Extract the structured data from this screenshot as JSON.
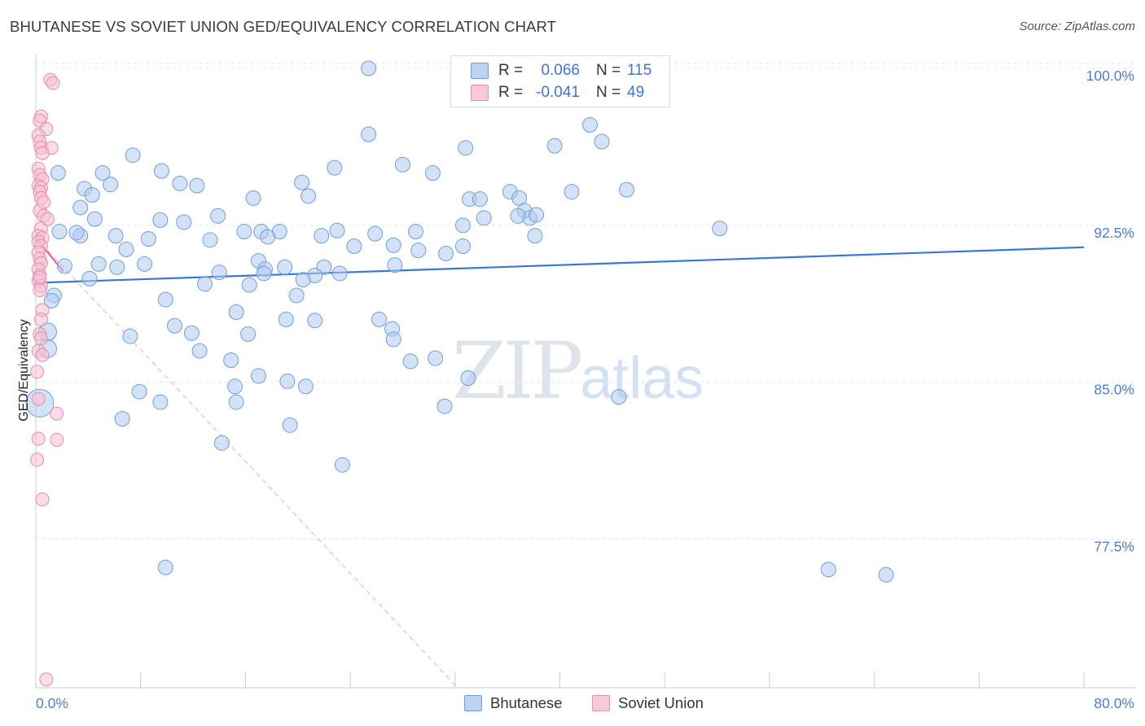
{
  "title": "BHUTANESE VS SOVIET UNION GED/EQUIVALENCY CORRELATION CHART",
  "source": "Source: ZipAtlas.com",
  "watermark": {
    "zip": "ZIP",
    "atlas": "atlas"
  },
  "legend": {
    "rows": [
      {
        "r_label": "R =",
        "r_value": "0.066",
        "n_label": "N =",
        "n_value": "115"
      },
      {
        "r_label": "R =",
        "r_value": "-0.041",
        "n_label": "N =",
        "n_value": "49"
      }
    ]
  },
  "bottom_legend": [
    "Bhutanese",
    "Soviet Union"
  ],
  "colors": {
    "blue_fill": "#aecbf0",
    "blue_stroke": "#6f9fd9",
    "blue_line": "#3a78d0",
    "pink_fill": "#f6bfd1",
    "pink_stroke": "#e58eab",
    "pink_line": "#e46f95",
    "grid": "#e6e6e6",
    "tick_text": "#4a7fd1"
  },
  "chart_data": {
    "type": "scatter",
    "title": "BHUTANESE VS SOVIET UNION GED/EQUIVALENCY CORRELATION CHART",
    "xlabel": "",
    "ylabel": "GED/Equivalency",
    "xlim": [
      0,
      80
    ],
    "ylim": [
      70.4,
      100.7
    ],
    "x_tick_labels": [
      "0.0%",
      "80.0%"
    ],
    "y_ticks": [
      77.5,
      85.0,
      92.5,
      100.0
    ],
    "y_tick_labels": [
      "77.5%",
      "85.0%",
      "92.5%",
      "100.0%"
    ],
    "series": [
      {
        "name": "Bhutanese",
        "r": 0.066,
        "n": 115,
        "trend": {
          "x": [
            0,
            80
          ],
          "y": [
            89.75,
            91.45
          ]
        },
        "points": [
          [
            25.4,
            100.0
          ],
          [
            25.4,
            96.85
          ],
          [
            42.3,
            97.3
          ],
          [
            39.6,
            96.3
          ],
          [
            43.2,
            96.5
          ],
          [
            32.8,
            96.2
          ],
          [
            7.4,
            95.85
          ],
          [
            5.1,
            95.0
          ],
          [
            9.6,
            95.1
          ],
          [
            11.0,
            94.5
          ],
          [
            12.3,
            94.4
          ],
          [
            5.7,
            94.45
          ],
          [
            3.7,
            94.25
          ],
          [
            4.3,
            93.95
          ],
          [
            22.8,
            95.25
          ],
          [
            30.3,
            95.0
          ],
          [
            36.2,
            94.1
          ],
          [
            40.9,
            94.1
          ],
          [
            33.1,
            93.75
          ],
          [
            33.9,
            93.75
          ],
          [
            36.9,
            93.8
          ],
          [
            16.6,
            93.8
          ],
          [
            20.3,
            94.55
          ],
          [
            20.8,
            93.9
          ],
          [
            3.4,
            93.35
          ],
          [
            4.5,
            92.8
          ],
          [
            9.5,
            92.75
          ],
          [
            13.9,
            92.95
          ],
          [
            11.3,
            92.65
          ],
          [
            15.9,
            92.2
          ],
          [
            17.2,
            92.2
          ],
          [
            18.6,
            92.2
          ],
          [
            23.0,
            92.25
          ],
          [
            29.0,
            92.2
          ],
          [
            32.6,
            92.5
          ],
          [
            34.2,
            92.85
          ],
          [
            37.3,
            93.2
          ],
          [
            37.7,
            92.85
          ],
          [
            52.2,
            92.35
          ],
          [
            3.4,
            92.0
          ],
          [
            1.8,
            92.2
          ],
          [
            3.1,
            92.15
          ],
          [
            6.1,
            92.0
          ],
          [
            8.6,
            91.85
          ],
          [
            13.3,
            91.8
          ],
          [
            17.7,
            91.95
          ],
          [
            21.8,
            92.0
          ],
          [
            24.3,
            91.5
          ],
          [
            27.3,
            91.55
          ],
          [
            29.2,
            91.3
          ],
          [
            31.3,
            91.15
          ],
          [
            32.6,
            91.5
          ],
          [
            38.1,
            92.0
          ],
          [
            25.9,
            92.1
          ],
          [
            6.9,
            91.35
          ],
          [
            2.2,
            90.55
          ],
          [
            4.8,
            90.65
          ],
          [
            6.2,
            90.5
          ],
          [
            8.3,
            90.65
          ],
          [
            17.0,
            90.8
          ],
          [
            17.5,
            90.4
          ],
          [
            19.0,
            90.5
          ],
          [
            22.0,
            90.5
          ],
          [
            27.4,
            90.6
          ],
          [
            14.0,
            90.25
          ],
          [
            17.4,
            90.2
          ],
          [
            21.3,
            90.1
          ],
          [
            23.2,
            90.2
          ],
          [
            1.4,
            89.15
          ],
          [
            1.2,
            88.9
          ],
          [
            4.1,
            89.95
          ],
          [
            12.9,
            89.7
          ],
          [
            16.3,
            89.65
          ],
          [
            20.4,
            89.9
          ],
          [
            19.9,
            89.15
          ],
          [
            9.9,
            88.95
          ],
          [
            15.3,
            88.35
          ],
          [
            10.6,
            87.7
          ],
          [
            11.9,
            87.35
          ],
          [
            7.2,
            87.2
          ],
          [
            16.2,
            87.3
          ],
          [
            19.1,
            88.0
          ],
          [
            21.3,
            87.95
          ],
          [
            26.2,
            88.0
          ],
          [
            27.2,
            87.55
          ],
          [
            27.3,
            87.05
          ],
          [
            0.9,
            87.4
          ],
          [
            0.9,
            86.6
          ],
          [
            12.5,
            86.5
          ],
          [
            14.9,
            86.05
          ],
          [
            28.6,
            86.0
          ],
          [
            30.5,
            86.15
          ],
          [
            17.0,
            85.3
          ],
          [
            15.2,
            84.8
          ],
          [
            19.2,
            85.05
          ],
          [
            20.6,
            84.8
          ],
          [
            33.0,
            85.2
          ],
          [
            7.9,
            84.55
          ],
          [
            9.5,
            84.05
          ],
          [
            15.3,
            84.05
          ],
          [
            31.2,
            83.85
          ],
          [
            44.5,
            84.3
          ],
          [
            0.3,
            84.0
          ],
          [
            6.6,
            83.25
          ],
          [
            19.4,
            82.95
          ],
          [
            14.2,
            82.1
          ],
          [
            23.4,
            81.05
          ],
          [
            9.9,
            76.15
          ],
          [
            60.5,
            76.05
          ],
          [
            64.9,
            75.8
          ],
          [
            1.7,
            95.0
          ],
          [
            45.1,
            94.2
          ],
          [
            28.0,
            95.4
          ],
          [
            38.2,
            93.0
          ],
          [
            36.8,
            92.95
          ]
        ]
      },
      {
        "name": "Soviet Union",
        "r": -0.041,
        "n": 49,
        "trend_solid": {
          "x": [
            0,
            2.1
          ],
          "y": [
            91.9,
            90.3
          ]
        },
        "trend_dashed": {
          "x": [
            0,
            32.2
          ],
          "y": [
            91.9,
            70.4
          ]
        },
        "points": [
          [
            1.1,
            99.45
          ],
          [
            1.3,
            99.3
          ],
          [
            0.4,
            97.7
          ],
          [
            0.3,
            97.5
          ],
          [
            0.8,
            97.1
          ],
          [
            0.2,
            96.8
          ],
          [
            0.3,
            96.5
          ],
          [
            0.4,
            96.2
          ],
          [
            1.2,
            96.2
          ],
          [
            0.5,
            95.95
          ],
          [
            0.2,
            95.2
          ],
          [
            0.3,
            94.9
          ],
          [
            0.5,
            94.7
          ],
          [
            0.2,
            94.4
          ],
          [
            0.4,
            94.3
          ],
          [
            0.3,
            94.1
          ],
          [
            0.4,
            93.8
          ],
          [
            0.3,
            93.2
          ],
          [
            0.6,
            92.95
          ],
          [
            0.4,
            92.35
          ],
          [
            0.2,
            92.0
          ],
          [
            0.5,
            91.9
          ],
          [
            0.2,
            91.7
          ],
          [
            0.4,
            91.5
          ],
          [
            0.2,
            91.2
          ],
          [
            0.3,
            90.9
          ],
          [
            0.4,
            90.7
          ],
          [
            0.2,
            90.4
          ],
          [
            0.3,
            90.1
          ],
          [
            0.2,
            89.85
          ],
          [
            0.4,
            89.6
          ],
          [
            0.3,
            89.4
          ],
          [
            0.5,
            88.45
          ],
          [
            0.4,
            88.0
          ],
          [
            0.3,
            87.3
          ],
          [
            0.4,
            87.1
          ],
          [
            0.2,
            86.5
          ],
          [
            0.5,
            86.3
          ],
          [
            0.1,
            85.5
          ],
          [
            0.2,
            84.2
          ],
          [
            1.6,
            83.5
          ],
          [
            1.6,
            82.25
          ],
          [
            0.2,
            82.3
          ],
          [
            0.1,
            81.3
          ],
          [
            0.5,
            79.4
          ],
          [
            0.8,
            70.8
          ],
          [
            0.3,
            90.0
          ],
          [
            0.6,
            93.6
          ],
          [
            0.9,
            92.8
          ]
        ]
      }
    ]
  }
}
